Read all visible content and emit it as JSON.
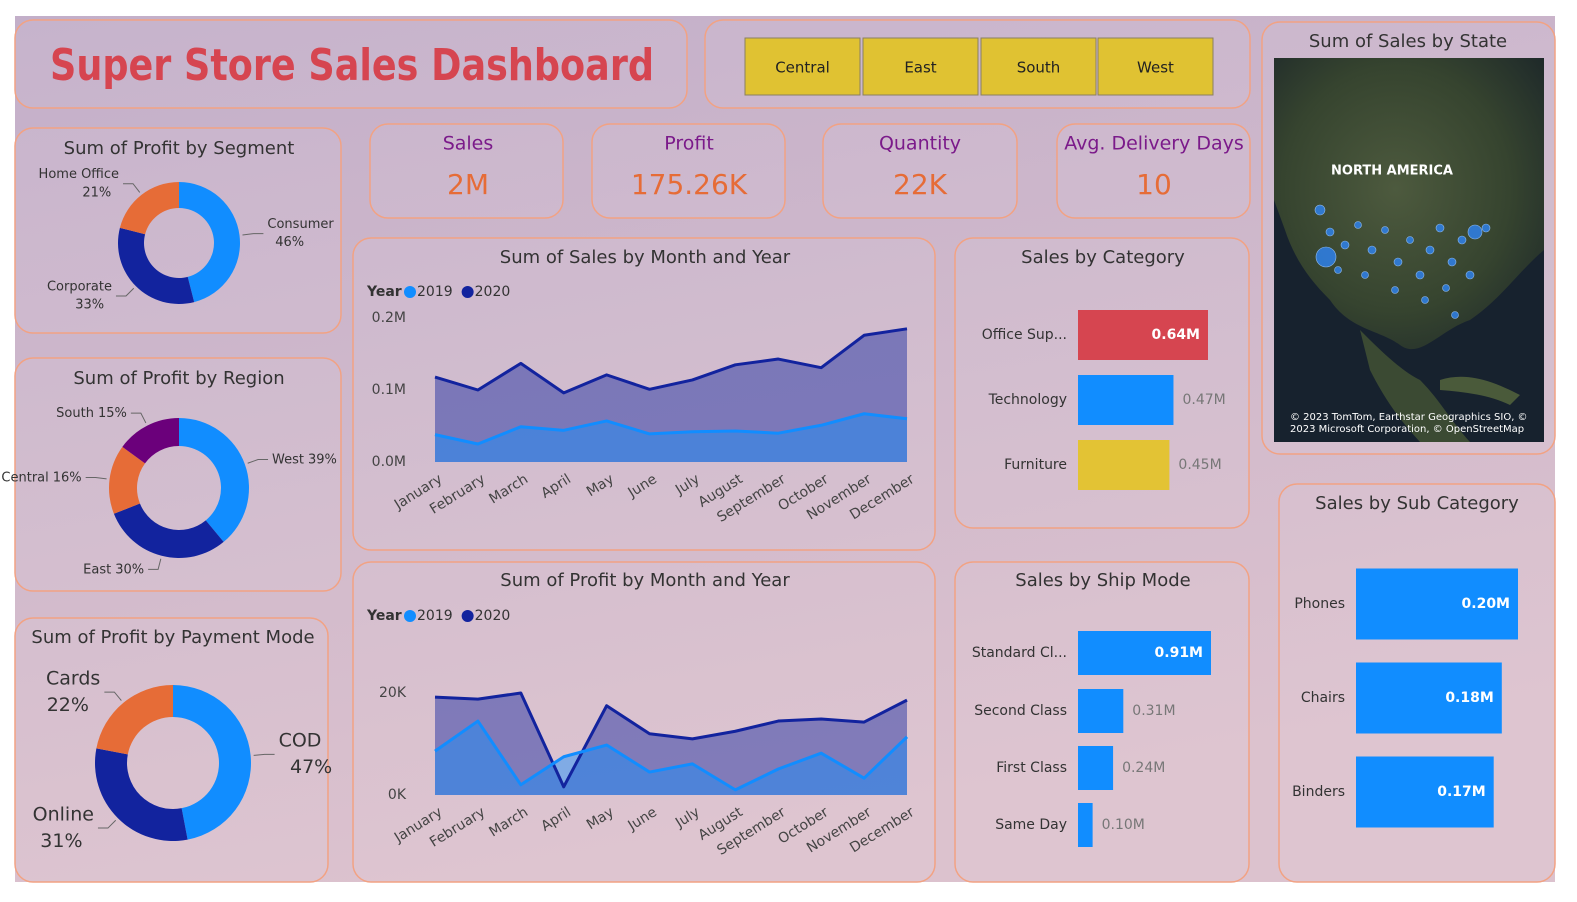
{
  "header": {
    "title": "Super Store Sales Dashboard"
  },
  "slicer": {
    "items": [
      "Central",
      "East",
      "South",
      "West"
    ]
  },
  "kpis": [
    {
      "label": "Sales",
      "value": "2M"
    },
    {
      "label": "Profit",
      "value": "175.26K"
    },
    {
      "label": "Quantity",
      "value": "22K"
    },
    {
      "label": "Avg. Delivery Days",
      "value": "10"
    }
  ],
  "map": {
    "title": "Sum of Sales by State",
    "region_label": "NORTH AMERICA",
    "credits": [
      "© 2023 TomTom, Earthstar Geographics SIO, ©",
      "2023 Microsoft Corporation, © OpenStreetMap"
    ]
  },
  "chart_data": [
    {
      "type": "donut",
      "title": "Sum of Profit by Segment",
      "categories": [
        "Consumer",
        "Corporate",
        "Home Office"
      ],
      "values": [
        46,
        33,
        21
      ],
      "value_labels": [
        "46%",
        "33%",
        "21%"
      ],
      "colors": [
        "#118DFF",
        "#12239E",
        "#E66C37"
      ]
    },
    {
      "type": "donut",
      "title": "Sum of Profit by Region",
      "categories": [
        "West",
        "East",
        "Central",
        "South"
      ],
      "values": [
        39,
        30,
        16,
        15
      ],
      "value_labels": [
        "39%",
        "30%",
        "16%",
        "15%"
      ],
      "colors": [
        "#118DFF",
        "#12239E",
        "#E66C37",
        "#6B007B"
      ]
    },
    {
      "type": "donut",
      "title": "Sum of Profit by Payment Mode",
      "categories": [
        "COD",
        "Online",
        "Cards"
      ],
      "values": [
        47,
        31,
        22
      ],
      "value_labels": [
        "47%",
        "31%",
        "22%"
      ],
      "colors": [
        "#118DFF",
        "#12239E",
        "#E66C37"
      ]
    },
    {
      "type": "area",
      "title": "Sum of Sales by Month and Year",
      "legend_title": "Year",
      "categories": [
        "January",
        "February",
        "March",
        "April",
        "May",
        "June",
        "July",
        "August",
        "September",
        "October",
        "November",
        "December"
      ],
      "series": [
        {
          "name": "2019",
          "color": "#118DFF",
          "values": [
            38000,
            25000,
            49000,
            44000,
            57000,
            39000,
            42000,
            43000,
            40000,
            51000,
            67000,
            60000
          ]
        },
        {
          "name": "2020",
          "color": "#12239E",
          "values": [
            118000,
            100000,
            137000,
            96000,
            121000,
            101000,
            114000,
            135000,
            143000,
            131000,
            176000,
            185000
          ]
        }
      ],
      "ylim": [
        0,
        200000
      ],
      "yticks": [
        {
          "value": 0,
          "label": "0.0M"
        },
        {
          "value": 100000,
          "label": "0.1M"
        },
        {
          "value": 200000,
          "label": "0.2M"
        }
      ]
    },
    {
      "type": "area",
      "title": "Sum of Profit by Month and Year",
      "legend_title": "Year",
      "categories": [
        "January",
        "February",
        "March",
        "April",
        "May",
        "June",
        "July",
        "August",
        "September",
        "October",
        "November",
        "December"
      ],
      "series": [
        {
          "name": "2019",
          "color": "#118DFF",
          "values": [
            8600,
            14500,
            2000,
            7500,
            9800,
            4500,
            6100,
            1000,
            5100,
            8200,
            3300,
            11400
          ]
        },
        {
          "name": "2020",
          "color": "#12239E",
          "values": [
            19200,
            18800,
            20000,
            1600,
            17500,
            12000,
            11000,
            12500,
            14500,
            14900,
            14300,
            18600
          ]
        }
      ],
      "ylim": [
        0,
        26000
      ],
      "yticks": [
        {
          "value": 0,
          "label": "0K"
        },
        {
          "value": 20000,
          "label": "20K"
        }
      ]
    },
    {
      "type": "hbar",
      "title": "Sales by Category",
      "categories": [
        "Office Sup...",
        "Technology",
        "Furniture"
      ],
      "values": [
        640000,
        470000,
        450000
      ],
      "value_labels": [
        "0.64M",
        "0.47M",
        "0.45M"
      ],
      "colors": [
        "#D64550",
        "#118DFF",
        "#E3C334"
      ]
    },
    {
      "type": "hbar",
      "title": "Sales by Ship Mode",
      "categories": [
        "Standard Cl...",
        "Second Class",
        "First Class",
        "Same Day"
      ],
      "values": [
        910000,
        310000,
        240000,
        100000
      ],
      "value_labels": [
        "0.91M",
        "0.31M",
        "0.24M",
        "0.10M"
      ],
      "color": "#118DFF"
    },
    {
      "type": "hbar",
      "title": "Sales by Sub Category",
      "categories": [
        "Phones",
        "Chairs",
        "Binders"
      ],
      "values": [
        200000,
        180000,
        170000
      ],
      "value_labels": [
        "0.20M",
        "0.18M",
        "0.17M"
      ],
      "color": "#118DFF"
    }
  ]
}
